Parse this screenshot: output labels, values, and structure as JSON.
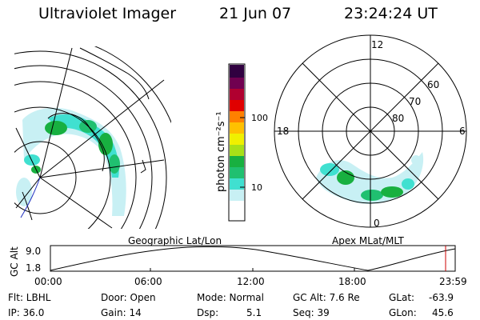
{
  "header": {
    "instrument": "Ultraviolet Imager",
    "date": "21 Jun 07",
    "time": "23:24:24 UT"
  },
  "colorbar": {
    "unit_label": "photon cm⁻²s⁻¹",
    "ticks": [
      "100",
      "10"
    ],
    "colors": [
      "#ffffff",
      "#c8f0f4",
      "#40e0d0",
      "#20c070",
      "#18b040",
      "#a8e018",
      "#f0f000",
      "#ffc000",
      "#ff8000",
      "#e00000",
      "#b00030",
      "#700050",
      "#300040"
    ]
  },
  "left_map": {
    "caption": "Geographic Lat/Lon"
  },
  "right_map": {
    "caption": "Apex MLat/MLT",
    "mlt_labels": {
      "top": "12",
      "left": "18",
      "right": "6",
      "bottom": "0"
    },
    "lat_labels": [
      "60",
      "70",
      "80"
    ]
  },
  "altitude_strip": {
    "ylabel": "GC Alt",
    "y_ticks": [
      "9.0",
      "1.8"
    ],
    "x_ticks": [
      "00:00",
      "06:00",
      "12:00",
      "18:00",
      "23:59"
    ],
    "marker_color": "#cc0000"
  },
  "status": {
    "row1": {
      "filter": "Flt: LBHL",
      "door": "Door: Open",
      "mode": "Mode: Normal",
      "gc_alt": "GC Alt: 7.6 Re",
      "glat_label": "GLat:",
      "glat_value": "-63.9"
    },
    "row2": {
      "ip": "IP: 36.0",
      "gain": "Gain: 14",
      "dsp_label": "Dsp:",
      "dsp_value": "5.1",
      "seq": "Seq: 39",
      "glon_label": "GLon:",
      "glon_value": "45.6"
    }
  }
}
